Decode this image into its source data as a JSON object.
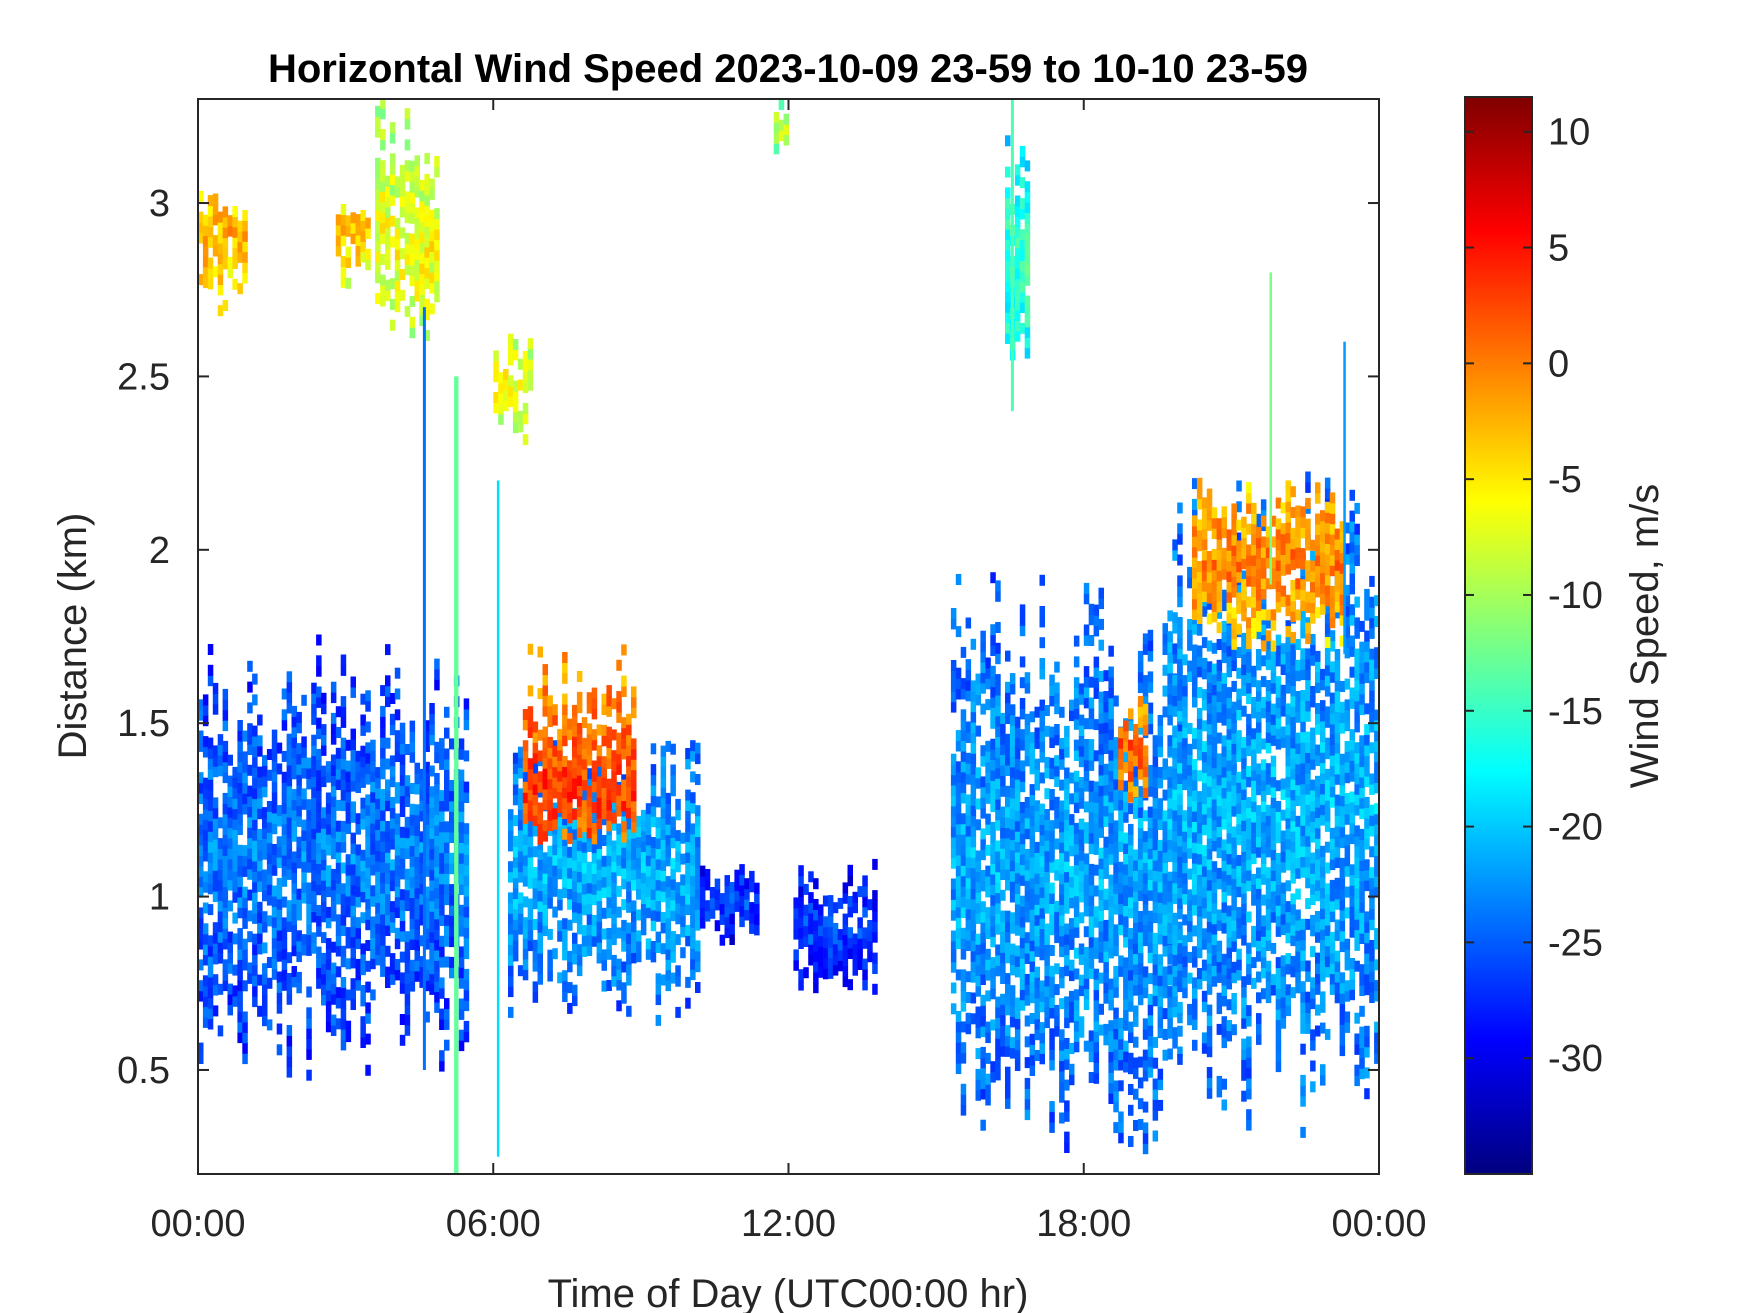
{
  "chart_data": {
    "type": "heatmap",
    "title": "Horizontal Wind Speed 2023-10-09 23-59 to 10-10 23-59",
    "xlabel": "Time of Day (UTC00:00 hr)",
    "ylabel": "Distance (km)",
    "xlim": [
      0,
      24
    ],
    "ylim": [
      0.2,
      3.3
    ],
    "x_ticks": [
      0,
      6,
      12,
      18,
      24
    ],
    "x_tick_labels": [
      "00:00",
      "06:00",
      "12:00",
      "18:00",
      "00:00"
    ],
    "y_ticks": [
      0.5,
      1,
      1.5,
      2,
      2.5,
      3
    ],
    "y_tick_labels": [
      "0.5",
      "1",
      "1.5",
      "2",
      "2.5",
      "3"
    ],
    "colorbar": {
      "label": "Wind Speed, m/s",
      "colormap": "jet",
      "range": [
        -35,
        11.5
      ],
      "ticks": [
        10,
        5,
        0,
        -5,
        -10,
        -15,
        -20,
        -25,
        -30
      ],
      "tick_labels": [
        "10",
        "5",
        "0",
        "-5",
        "-10",
        "-15",
        "-20",
        "-25",
        "-30"
      ],
      "colors": [
        "#00007f",
        "#0000ff",
        "#007fff",
        "#00ffff",
        "#7fff7f",
        "#ffff00",
        "#ff7f00",
        "#ff0000",
        "#7f0000"
      ]
    },
    "grid": false,
    "regions": [
      {
        "x0": 0.0,
        "x1": 5.5,
        "ylo": 0.45,
        "yhi": 1.75,
        "ymid": 1.1,
        "v": -23.5,
        "seed": 1
      },
      {
        "x0": 6.3,
        "x1": 10.2,
        "ylo": 0.62,
        "yhi": 1.45,
        "ymid": 1.05,
        "v": -21,
        "seed": 2
      },
      {
        "x0": 10.2,
        "x1": 11.4,
        "ylo": 0.85,
        "yhi": 1.1,
        "ymid": 0.97,
        "v": -26,
        "seed": 3
      },
      {
        "x0": 12.1,
        "x1": 13.8,
        "ylo": 0.7,
        "yhi": 1.1,
        "ymid": 0.88,
        "v": -26,
        "seed": 4
      },
      {
        "x0": 15.3,
        "x1": 20.0,
        "ylo": 0.25,
        "yhi": 1.95,
        "ymid": 1.05,
        "v": -21.5,
        "seed": 5
      },
      {
        "x0": 19.7,
        "x1": 24.0,
        "ylo": 0.3,
        "yhi": 2.22,
        "ymid": 1.25,
        "v": -21,
        "seed": 6
      },
      {
        "x0": 0.0,
        "x1": 1.0,
        "ylo": 2.65,
        "yhi": 3.05,
        "ymid": 2.9,
        "v": -2,
        "seed": 7
      },
      {
        "x0": 2.8,
        "x1": 3.5,
        "ylo": 2.75,
        "yhi": 3.0,
        "ymid": 2.9,
        "v": -3,
        "seed": 8
      },
      {
        "x0": 3.6,
        "x1": 4.9,
        "ylo": 2.6,
        "yhi": 3.3,
        "ymid": 2.85,
        "v": -6,
        "seed": 9
      },
      {
        "x0": 6.0,
        "x1": 6.8,
        "ylo": 2.3,
        "yhi": 2.65,
        "ymid": 2.45,
        "v": -6,
        "seed": 10
      },
      {
        "x0": 11.7,
        "x1": 12.0,
        "ylo": 3.1,
        "yhi": 3.28,
        "ymid": 3.2,
        "v": -9,
        "seed": 11
      },
      {
        "x0": 16.4,
        "x1": 16.9,
        "ylo": 2.45,
        "yhi": 3.3,
        "ymid": 2.8,
        "v": -15,
        "seed": 12
      },
      {
        "x0": 6.6,
        "x1": 8.9,
        "ylo": 1.15,
        "yhi": 1.75,
        "ymid": 1.3,
        "v": 3,
        "seed": 13
      },
      {
        "x0": 20.2,
        "x1": 23.3,
        "ylo": 1.7,
        "yhi": 2.2,
        "ymid": 1.95,
        "v": 0,
        "seed": 14
      },
      {
        "x0": 18.7,
        "x1": 19.3,
        "ylo": 1.25,
        "yhi": 1.6,
        "ymid": 1.4,
        "v": 2,
        "seed": 15
      }
    ],
    "streaks": [
      {
        "x": 5.25,
        "y0": 0.2,
        "y1": 2.5,
        "v": -13,
        "w": 0.09
      },
      {
        "x": 6.1,
        "y0": 0.25,
        "y1": 2.2,
        "v": -19,
        "w": 0.05
      },
      {
        "x": 4.6,
        "y0": 0.5,
        "y1": 2.7,
        "v": -24,
        "w": 0.06
      },
      {
        "x": 16.55,
        "y0": 2.4,
        "y1": 3.3,
        "v": -14,
        "w": 0.06
      },
      {
        "x": 21.8,
        "y0": 1.9,
        "y1": 2.8,
        "v": -12,
        "w": 0.05
      },
      {
        "x": 23.3,
        "y0": 1.7,
        "y1": 2.6,
        "v": -22,
        "w": 0.05
      }
    ]
  }
}
